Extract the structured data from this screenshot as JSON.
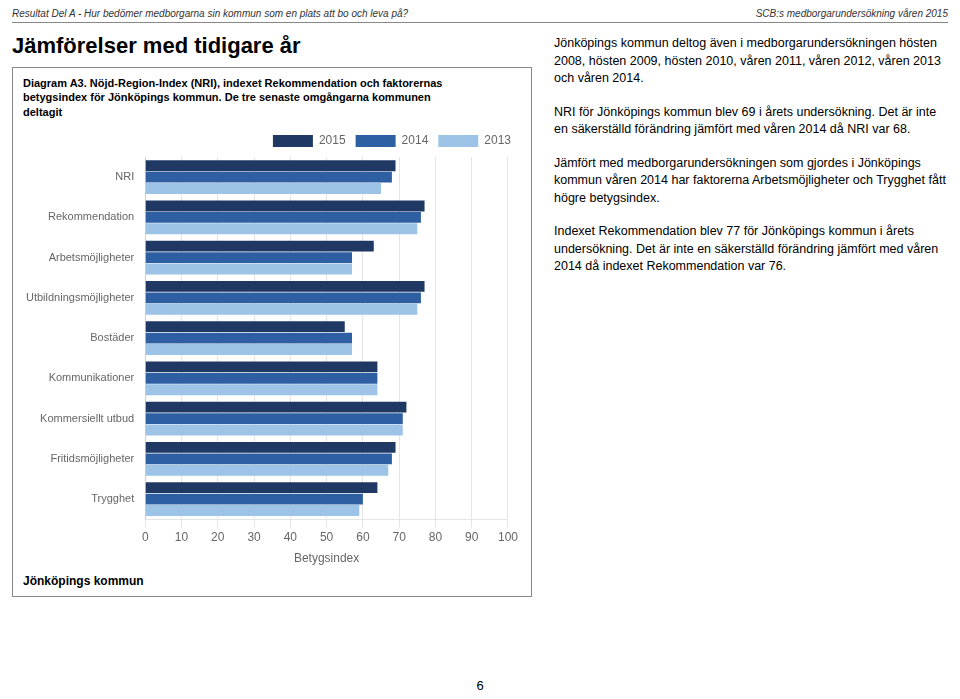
{
  "chart_data": {
    "type": "bar",
    "orientation": "horizontal",
    "header_left": "Resultat Del A - Hur bedömer medborgarna sin kommun som en plats att bo och leva på?",
    "header_right": "SCB:s medborgarundersökning våren 2015",
    "page_title": "Jämförelser med tidigare år",
    "title": "Diagram A3. Nöjd-Region-Index (NRI), indexet Rekommendation och faktorernas\nbetygsindex för Jönköpings kommun. De tre senaste omgångarna kommunen\ndeltagit",
    "text": [
      "Jönköpings kommun deltog även i medborgarundersökningen hösten 2008, hösten 2009, hösten 2010, våren 2011, våren 2012, våren 2013 och våren 2014.",
      "NRI för Jönköpings kommun blev 69 i årets undersökning. Det är inte en säkerställd förändring jämfört med våren 2014 då NRI var 68.",
      "Jämfört med medborgarundersökningen som gjordes i Jönköpings kommun våren 2014 har faktorerna Arbetsmöjligheter och Trygghet fått högre betygsindex.",
      "Indexet Rekommendation blev 77 för Jönköpings kommun i årets undersökning. Det är inte en säkerställd förändring jämfört med våren 2014 då indexet Rekommendation var 76."
    ],
    "footnote": "Jönköpings kommun",
    "page_number": "6",
    "categories": [
      "NRI",
      "Rekommendation",
      "Arbetsmöjligheter",
      "Utbildningsmöjligheter",
      "Bostäder",
      "Kommunikationer",
      "Kommersiellt utbud",
      "Fritidsmöjligheter",
      "Trygghet"
    ],
    "series": [
      {
        "name": "2015",
        "color": "#1F3864",
        "values": [
          69,
          77,
          63,
          77,
          55,
          64,
          72,
          69,
          64
        ]
      },
      {
        "name": "2014",
        "color": "#2E5FA3",
        "values": [
          68,
          76,
          57,
          76,
          57,
          64,
          71,
          68,
          60
        ]
      },
      {
        "name": "2013",
        "color": "#9DC3E6",
        "values": [
          65,
          75,
          57,
          75,
          57,
          64,
          71,
          67,
          59
        ]
      }
    ],
    "xlabel": "Betygsindex",
    "xlim": [
      0,
      100
    ],
    "xticks": [
      0,
      10,
      20,
      30,
      40,
      50,
      60,
      70,
      80,
      90,
      100
    ],
    "grid": true,
    "legend": "upper right"
  }
}
